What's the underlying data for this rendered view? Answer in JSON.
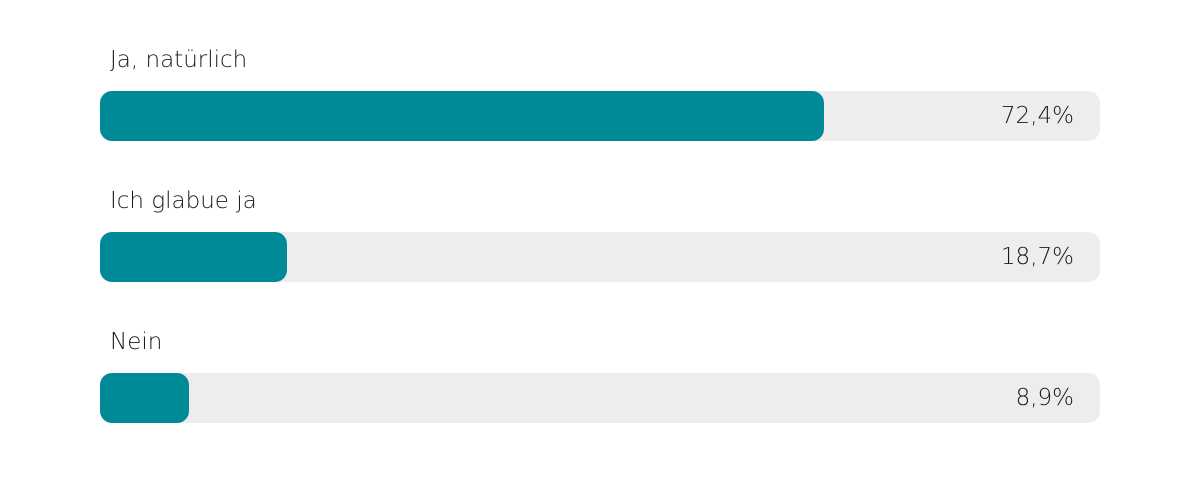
{
  "chart_data": {
    "type": "bar",
    "orientation": "horizontal",
    "categories": [
      "Ja, natürlich",
      "Ich glabue ja",
      "Nein"
    ],
    "values": [
      72.4,
      18.7,
      8.9
    ],
    "value_labels": [
      "72,4%",
      "18,7%",
      "8,9%"
    ],
    "xlim": [
      0,
      100
    ],
    "grid": false,
    "colors": {
      "fill": "#008996",
      "track": "#ededed"
    }
  }
}
